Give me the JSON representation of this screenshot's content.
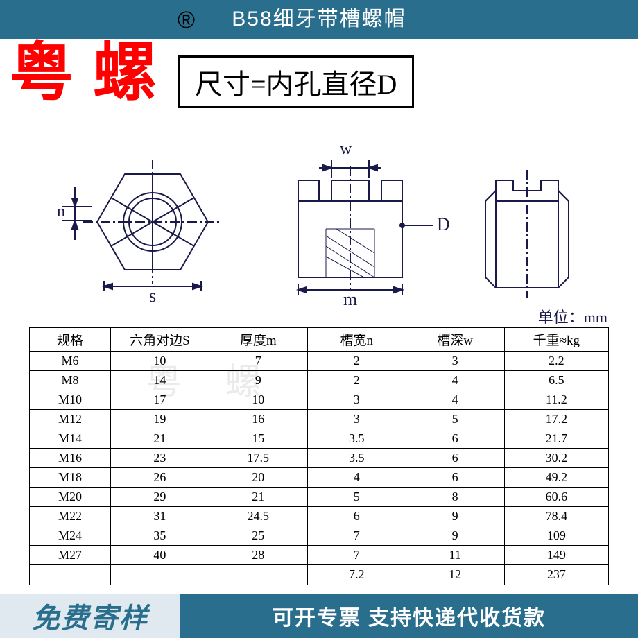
{
  "header": {
    "title": "B58细牙带槽螺帽",
    "reg_symbol": "®",
    "band_color": "#2a6e8e"
  },
  "brand": {
    "text": "粤螺",
    "color": "#ff0000"
  },
  "size_note": "尺寸=内孔直径D",
  "unit_label": "单位：mm",
  "diagram": {
    "labels": {
      "w": "w",
      "n": "n",
      "s": "s",
      "m": "m",
      "D": "D"
    },
    "stroke": "#1a1a4a"
  },
  "watermark_light": "粤 螺",
  "table": {
    "columns": [
      "规格",
      "六角对边S",
      "厚度m",
      "槽宽n",
      "槽深w",
      "千重≈kg"
    ],
    "rows": [
      [
        "M6",
        "10",
        "7",
        "2",
        "3",
        "2.2"
      ],
      [
        "M8",
        "14",
        "9",
        "2",
        "4",
        "6.5"
      ],
      [
        "M10",
        "17",
        "10",
        "3",
        "4",
        "11.2"
      ],
      [
        "M12",
        "19",
        "16",
        "3",
        "5",
        "17.2"
      ],
      [
        "M14",
        "21",
        "15",
        "3.5",
        "6",
        "21.7"
      ],
      [
        "M16",
        "23",
        "17.5",
        "3.5",
        "6",
        "30.2"
      ],
      [
        "M18",
        "26",
        "20",
        "4",
        "6",
        "49.2"
      ],
      [
        "M20",
        "29",
        "21",
        "5",
        "8",
        "60.6"
      ],
      [
        "M22",
        "31",
        "24.5",
        "6",
        "9",
        "78.4"
      ],
      [
        "M24",
        "35",
        "25",
        "7",
        "9",
        "109"
      ],
      [
        "M27",
        "40",
        "28",
        "7",
        "11",
        "149"
      ]
    ],
    "partial_row": [
      "",
      "",
      "",
      "7.2",
      "12",
      "237"
    ],
    "col_widths_pct": [
      14,
      17,
      17,
      17,
      17,
      18
    ]
  },
  "footer": {
    "left_text": "免费寄样",
    "right_text": "可开专票 支持快递代收货款",
    "left_bg": "#dfe9ef",
    "right_bg": "#2a6e8e"
  }
}
